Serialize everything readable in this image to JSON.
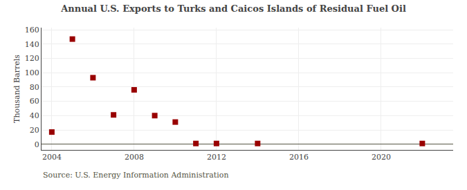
{
  "chart_data": {
    "type": "scatter",
    "title": "Annual U.S. Exports to Turks and Caicos Islands of Residual Fuel Oil",
    "ylabel": "Thousand Barrels",
    "annotations": [
      "Source: U.S. Energy Information Administration"
    ],
    "x": [
      2004,
      2005,
      2006,
      2007,
      2008,
      2009,
      2010,
      2011,
      2012,
      2014,
      2022
    ],
    "values": [
      17,
      147,
      93,
      41,
      76,
      40,
      31,
      1,
      1,
      1,
      1
    ],
    "color": "#990000",
    "marker": "square",
    "xlim": [
      2003.5,
      2023.5
    ],
    "ylim": [
      -8,
      163
    ],
    "xticks": [
      2004,
      2008,
      2012,
      2016,
      2020
    ],
    "yticks": [
      0,
      20,
      40,
      60,
      80,
      100,
      120,
      140,
      160
    ],
    "grid": true
  }
}
